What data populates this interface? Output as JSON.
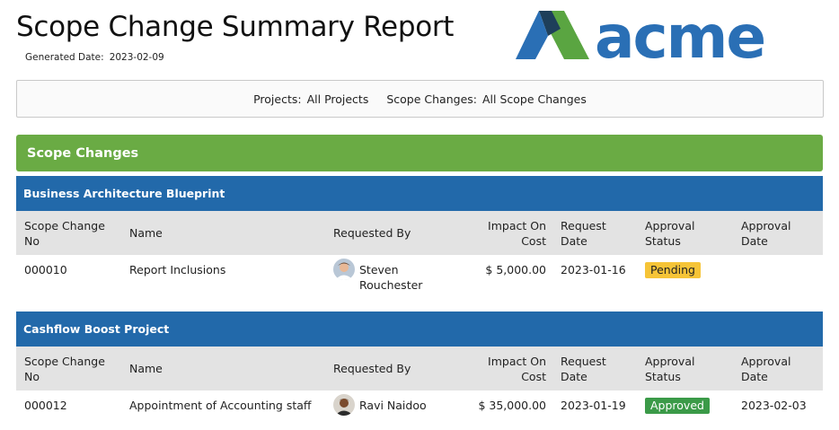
{
  "header": {
    "title": "Scope Change Summary Report",
    "generated_label": "Generated Date:",
    "generated_value": "2023-02-09"
  },
  "logo": {
    "text": "acme",
    "colors": {
      "blue": "#2a6fb5",
      "green": "#5aa541",
      "dark": "#1e3f5a"
    }
  },
  "filters": {
    "projects_label": "Projects:",
    "projects_value": "All Projects",
    "scope_label": "Scope Changes:",
    "scope_value": "All Scope Changes"
  },
  "section": {
    "title": "Scope Changes"
  },
  "columns": {
    "no_line1": "Scope Change",
    "no_line2": "No",
    "name": "Name",
    "requested_by": "Requested By",
    "cost_line1": "Impact On",
    "cost_line2": "Cost",
    "rdate_line1": "Request",
    "rdate_line2": "Date",
    "status_line1": "Approval",
    "status_line2": "Status",
    "adate_line1": "Approval",
    "adate_line2": "Date"
  },
  "projects": [
    {
      "title": "Business Architecture Blueprint",
      "rows": [
        {
          "no": "000010",
          "name": "Report Inclusions",
          "requested_by_line1": "Steven",
          "requested_by_line2": "Rouchester",
          "cost": "$ 5,000.00",
          "request_date": "2023-01-16",
          "status": "Pending",
          "approval_date": ""
        }
      ]
    },
    {
      "title": "Cashflow Boost Project",
      "rows": [
        {
          "no": "000012",
          "name": "Appointment of Accounting staff",
          "requested_by_line1": "Ravi Naidoo",
          "requested_by_line2": "",
          "cost": "$ 35,000.00",
          "request_date": "2023-01-19",
          "status": "Approved",
          "approval_date": "2023-02-03"
        }
      ]
    }
  ],
  "colors": {
    "section_green": "#6aab44",
    "project_blue": "#2269aa",
    "pending": "#f6c437",
    "approved": "#3b9a48"
  }
}
